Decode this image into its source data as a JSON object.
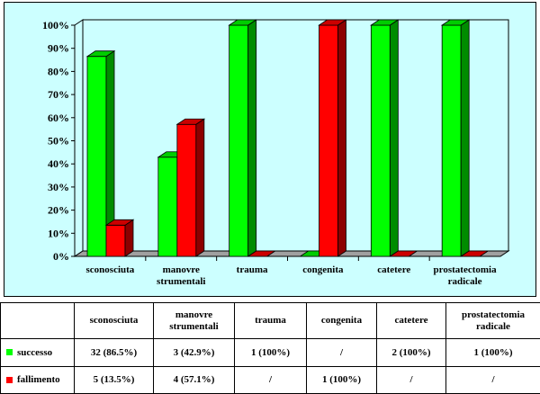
{
  "chart_data": {
    "type": "bar",
    "categories": [
      "sconosciuta",
      "manovre\nstrumentali",
      "trauma",
      "congenita",
      "catetere",
      "prostatectomia\nradicale"
    ],
    "series": [
      {
        "name": "successo",
        "values": [
          86.5,
          42.9,
          100,
          0,
          100,
          100
        ],
        "color": "#00ff00",
        "labels": [
          "32 (86.5%)",
          "3 (42.9%)",
          "1 (100%)",
          "/",
          "2 (100%)",
          "1 (100%)"
        ]
      },
      {
        "name": "fallimento",
        "values": [
          13.5,
          57.1,
          0,
          100,
          0,
          0
        ],
        "color": "#ff0000",
        "labels": [
          "5 (13.5%)",
          "4 (57.1%)",
          "/",
          "1 (100%)",
          "/",
          "/"
        ]
      }
    ],
    "ylim": [
      0,
      100
    ],
    "yticks": [
      "0%",
      "10%",
      "20%",
      "30%",
      "40%",
      "50%",
      "60%",
      "70%",
      "80%",
      "90%",
      "100%"
    ],
    "grid": false,
    "legend": "table"
  },
  "table": {
    "headers": [
      "sconosciuta",
      "manovre strumentali",
      "trauma",
      "congenita",
      "catetere",
      "prostatectomia radicale"
    ],
    "rows": [
      {
        "series": "successo",
        "color": "#00ff00",
        "cells": [
          "32 (86.5%)",
          "3 (42.9%)",
          "1 (100%)",
          "/",
          "2 (100%)",
          "1 (100%)"
        ]
      },
      {
        "series": "fallimento",
        "color": "#ff0000",
        "cells": [
          "5 (13.5%)",
          "4 (57.1%)",
          "/",
          "1 (100%)",
          "/",
          "/"
        ]
      }
    ]
  }
}
